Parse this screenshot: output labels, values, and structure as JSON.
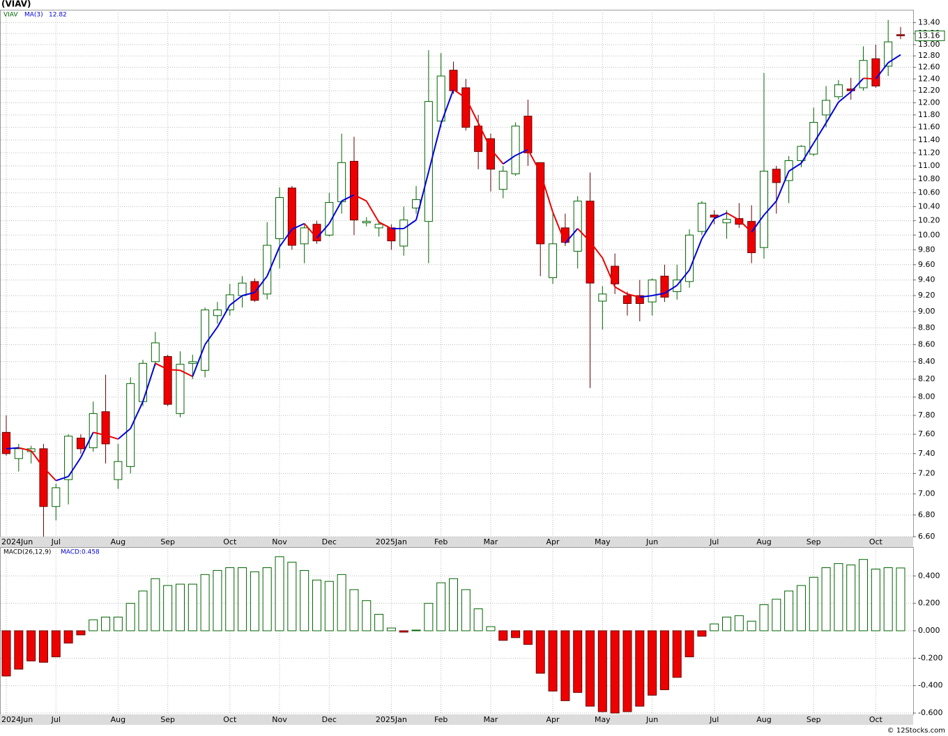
{
  "chart_data": [
    {
      "type": "candlestick",
      "title": "(VIAV)",
      "ticker": "VIAV",
      "categories": [
        "2024Jun",
        null,
        null,
        null,
        "Jul",
        null,
        null,
        null,
        null,
        "Aug",
        null,
        null,
        null,
        "Sep",
        null,
        null,
        null,
        null,
        "Oct",
        null,
        null,
        null,
        "Nov",
        null,
        null,
        null,
        "Dec",
        null,
        null,
        null,
        null,
        "2025Jan",
        null,
        null,
        null,
        "Feb",
        null,
        null,
        null,
        "Mar",
        null,
        null,
        null,
        null,
        "Apr",
        null,
        null,
        null,
        "May",
        null,
        null,
        null,
        "Jun",
        null,
        null,
        null,
        null,
        "Jul",
        null,
        null,
        null,
        "Aug",
        null,
        null,
        null,
        "Sep",
        null,
        null,
        null,
        null,
        "Oct",
        null,
        null
      ],
      "open": [
        7.62,
        7.35,
        7.42,
        7.45,
        6.88,
        7.14,
        7.56,
        7.46,
        7.84,
        7.14,
        7.27,
        7.95,
        8.4,
        8.46,
        7.82,
        8.38,
        8.3,
        8.95,
        9.02,
        9.2,
        9.38,
        9.22,
        9.95,
        10.67,
        9.88,
        10.15,
        10.0,
        10.47,
        11.07,
        10.17,
        10.1,
        10.1,
        9.85,
        10.38,
        10.19,
        11.7,
        12.55,
        12.25,
        11.62,
        11.42,
        10.65,
        10.88,
        11.78,
        11.05,
        9.43,
        10.1,
        9.78,
        10.48,
        9.13,
        9.58,
        9.2,
        9.2,
        9.12,
        9.45,
        9.25,
        9.38,
        10.05,
        10.28,
        10.17,
        10.23,
        10.19,
        9.83,
        10.95,
        10.78,
        11.08,
        11.18,
        11.8,
        12.1,
        12.23,
        12.25,
        12.75,
        12.62,
        13.18
      ],
      "high": [
        7.8,
        7.5,
        7.48,
        7.5,
        7.1,
        7.6,
        7.6,
        7.95,
        8.25,
        7.5,
        8.22,
        8.42,
        8.75,
        8.48,
        8.52,
        8.48,
        9.05,
        9.12,
        9.35,
        9.45,
        9.42,
        10.18,
        10.68,
        10.7,
        10.15,
        10.2,
        10.6,
        11.5,
        11.45,
        10.25,
        10.2,
        10.15,
        10.4,
        10.7,
        12.9,
        12.85,
        12.7,
        12.4,
        11.8,
        11.5,
        11.0,
        11.68,
        12.05,
        11.05,
        10.3,
        10.3,
        10.55,
        10.9,
        9.32,
        9.75,
        9.25,
        9.4,
        9.42,
        9.6,
        9.6,
        10.08,
        10.48,
        10.35,
        10.35,
        10.45,
        10.42,
        12.5,
        11.0,
        11.15,
        11.32,
        11.92,
        12.28,
        12.38,
        12.42,
        12.97,
        13.0,
        13.45,
        13.32
      ],
      "low": [
        7.38,
        7.22,
        7.3,
        6.6,
        6.75,
        6.9,
        7.4,
        7.42,
        7.3,
        7.05,
        7.2,
        7.9,
        8.35,
        7.9,
        7.78,
        8.2,
        8.22,
        8.85,
        8.95,
        9.05,
        9.12,
        9.15,
        9.55,
        9.8,
        9.62,
        9.88,
        9.98,
        10.3,
        10.0,
        10.12,
        9.98,
        9.8,
        9.72,
        10.3,
        9.62,
        11.6,
        12.15,
        11.55,
        10.95,
        10.62,
        10.52,
        10.85,
        11.0,
        9.45,
        9.35,
        9.85,
        9.55,
        8.1,
        8.78,
        9.22,
        8.95,
        8.88,
        8.95,
        9.12,
        9.15,
        9.3,
        10.0,
        10.15,
        9.95,
        10.1,
        9.62,
        9.68,
        10.3,
        10.45,
        10.98,
        11.15,
        11.6,
        12.05,
        12.05,
        12.2,
        12.25,
        12.45,
        13.1
      ],
      "close": [
        7.4,
        7.45,
        7.45,
        6.88,
        7.06,
        7.58,
        7.45,
        7.82,
        7.5,
        7.32,
        8.15,
        8.38,
        8.62,
        7.92,
        8.37,
        8.4,
        9.02,
        9.02,
        9.21,
        9.36,
        9.14,
        9.86,
        10.53,
        9.86,
        10.1,
        9.92,
        10.46,
        11.05,
        10.21,
        10.19,
        10.15,
        9.92,
        10.21,
        10.5,
        12.02,
        12.45,
        12.2,
        11.6,
        11.22,
        10.95,
        10.92,
        11.62,
        11.2,
        9.88,
        9.88,
        9.9,
        10.48,
        9.36,
        9.22,
        9.35,
        9.1,
        9.1,
        9.4,
        9.18,
        9.4,
        10.0,
        10.45,
        10.25,
        10.22,
        10.15,
        9.76,
        10.92,
        10.75,
        11.08,
        11.3,
        11.68,
        12.04,
        12.3,
        12.2,
        12.72,
        12.28,
        13.05,
        13.16
      ],
      "up_color": "#006400",
      "down_color": "#ee0000",
      "series": [
        {
          "name": "MA(3)",
          "up_color": "#0000dd",
          "down_color": "#ee0000",
          "values": [
            7.45,
            7.46,
            7.43,
            7.26,
            7.13,
            7.17,
            7.36,
            7.62,
            7.59,
            7.55,
            7.66,
            7.95,
            8.38,
            8.31,
            8.3,
            8.23,
            8.6,
            8.81,
            9.08,
            9.2,
            9.24,
            9.45,
            9.84,
            10.08,
            10.16,
            9.96,
            10.16,
            10.48,
            10.57,
            10.48,
            10.18,
            10.09,
            10.09,
            10.21,
            10.91,
            11.66,
            12.22,
            12.08,
            11.67,
            11.26,
            11.03,
            11.16,
            11.25,
            10.9,
            10.32,
            9.89,
            10.09,
            9.91,
            9.69,
            9.31,
            9.22,
            9.18,
            9.2,
            9.23,
            9.33,
            9.53,
            9.95,
            10.23,
            10.31,
            10.21,
            10.04,
            10.28,
            10.48,
            10.92,
            11.04,
            11.35,
            11.67,
            12.01,
            12.18,
            12.41,
            12.4,
            12.68,
            12.82
          ]
        }
      ],
      "log_scale": true,
      "grid": true,
      "ylim": [
        6.6,
        13.64
      ],
      "yticks": [
        {
          "value": 6.6,
          "label": "6.60"
        },
        {
          "value": 6.8,
          "label": "6.80"
        },
        {
          "value": 7.0,
          "label": "7.00"
        },
        {
          "value": 7.2,
          "label": "7.20"
        },
        {
          "value": 7.4,
          "label": "7.40"
        },
        {
          "value": 7.6,
          "label": "7.60"
        },
        {
          "value": 7.8,
          "label": "7.80"
        },
        {
          "value": 8.0,
          "label": "8.00"
        },
        {
          "value": 8.2,
          "label": "8.20"
        },
        {
          "value": 8.4,
          "label": "8.40"
        },
        {
          "value": 8.6,
          "label": "8.60"
        },
        {
          "value": 8.8,
          "label": "8.80"
        },
        {
          "value": 9.0,
          "label": "9.00"
        },
        {
          "value": 9.2,
          "label": "9.20"
        },
        {
          "value": 9.4,
          "label": "9.40"
        },
        {
          "value": 9.6,
          "label": "9.60"
        },
        {
          "value": 9.8,
          "label": "9.80"
        },
        {
          "value": 10.0,
          "label": "10.00"
        },
        {
          "value": 10.2,
          "label": "10.20"
        },
        {
          "value": 10.4,
          "label": "10.40"
        },
        {
          "value": 10.6,
          "label": "10.60"
        },
        {
          "value": 10.8,
          "label": "10.80"
        },
        {
          "value": 11.0,
          "label": "11.00"
        },
        {
          "value": 11.2,
          "label": "11.20"
        },
        {
          "value": 11.4,
          "label": "11.40"
        },
        {
          "value": 11.6,
          "label": "11.60"
        },
        {
          "value": 11.8,
          "label": "11.80"
        },
        {
          "value": 12.0,
          "label": "12.00"
        },
        {
          "value": 12.2,
          "label": "12.20"
        },
        {
          "value": 12.4,
          "label": "12.40"
        },
        {
          "value": 12.6,
          "label": "12.60"
        },
        {
          "value": 12.8,
          "label": "12.80"
        },
        {
          "value": 13.0,
          "label": "13.00"
        },
        {
          "value": 13.2,
          "label": "13.20"
        },
        {
          "value": 13.4,
          "label": "13.40"
        }
      ]
    },
    {
      "type": "bar",
      "title": "MACD(26,12,9)",
      "value_label": "MACD:0.458",
      "categories": [
        "2024Jun",
        null,
        null,
        null,
        "Jul",
        null,
        null,
        null,
        null,
        "Aug",
        null,
        null,
        null,
        "Sep",
        null,
        null,
        null,
        null,
        "Oct",
        null,
        null,
        null,
        "Nov",
        null,
        null,
        null,
        "Dec",
        null,
        null,
        null,
        null,
        "2025Jan",
        null,
        null,
        null,
        "Feb",
        null,
        null,
        null,
        "Mar",
        null,
        null,
        null,
        null,
        "Apr",
        null,
        null,
        null,
        "May",
        null,
        null,
        null,
        "Jun",
        null,
        null,
        null,
        null,
        "Jul",
        null,
        null,
        null,
        "Aug",
        null,
        null,
        null,
        "Sep",
        null,
        null,
        null,
        null,
        "Oct",
        null,
        null
      ],
      "values": [
        -0.33,
        -0.28,
        -0.22,
        -0.23,
        -0.19,
        -0.09,
        -0.03,
        0.08,
        0.1,
        0.1,
        0.2,
        0.29,
        0.38,
        0.33,
        0.34,
        0.34,
        0.41,
        0.44,
        0.46,
        0.46,
        0.43,
        0.46,
        0.54,
        0.5,
        0.44,
        0.37,
        0.36,
        0.41,
        0.3,
        0.22,
        0.12,
        0.02,
        -0.01,
        0.005,
        0.2,
        0.35,
        0.38,
        0.3,
        0.16,
        0.03,
        -0.07,
        -0.05,
        -0.1,
        -0.31,
        -0.44,
        -0.51,
        -0.45,
        -0.55,
        -0.59,
        -0.6,
        -0.59,
        -0.55,
        -0.47,
        -0.43,
        -0.34,
        -0.19,
        -0.04,
        0.05,
        0.1,
        0.11,
        0.07,
        0.19,
        0.23,
        0.29,
        0.33,
        0.39,
        0.46,
        0.49,
        0.48,
        0.52,
        0.45,
        0.46,
        0.458
      ],
      "up_color": "#006400",
      "down_color": "#ee0000",
      "grid": true,
      "ylim": [
        -0.61,
        0.61
      ],
      "yticks": [
        {
          "value": -0.6,
          "label": "-0.600"
        },
        {
          "value": -0.4,
          "label": "-0.400"
        },
        {
          "value": -0.2,
          "label": "-0.200"
        },
        {
          "value": 0,
          "label": "0.000"
        },
        {
          "value": 0.2,
          "label": "0.200"
        },
        {
          "value": 0.4,
          "label": "0.400"
        }
      ]
    }
  ],
  "footer": "© 12Stocks.com"
}
